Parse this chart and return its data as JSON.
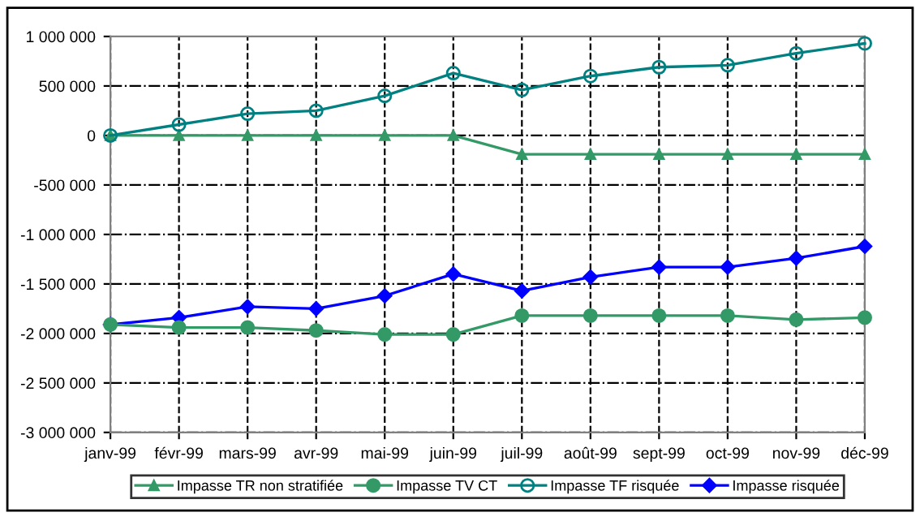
{
  "chart_data": {
    "type": "line",
    "categories": [
      "janv-99",
      "févr-99",
      "mars-99",
      "avr-99",
      "mai-99",
      "juin-99",
      "juil-99",
      "août-99",
      "sept-99",
      "oct-99",
      "nov-99",
      "déc-99"
    ],
    "series": [
      {
        "name": "Impasse TR non stratifiée",
        "color": "#339966",
        "marker": "triangle",
        "values": [
          0,
          0,
          0,
          0,
          0,
          0,
          -190000,
          -190000,
          -190000,
          -190000,
          -190000,
          -190000
        ]
      },
      {
        "name": "Impasse TV CT",
        "color": "#339966",
        "marker": "circle",
        "values": [
          -1910000,
          -1940000,
          -1940000,
          -1970000,
          -2010000,
          -2010000,
          -1820000,
          -1820000,
          -1820000,
          -1820000,
          -1860000,
          -1840000
        ]
      },
      {
        "name": "Impasse TF risquée",
        "color": "#008080",
        "marker": "open_circle",
        "values": [
          0,
          110000,
          220000,
          250000,
          400000,
          630000,
          460000,
          600000,
          690000,
          710000,
          830000,
          930000
        ]
      },
      {
        "name": "Impasse risquée",
        "color": "#0000ff",
        "marker": "diamond",
        "values": [
          -1910000,
          -1840000,
          -1730000,
          -1750000,
          -1620000,
          -1400000,
          -1570000,
          -1430000,
          -1330000,
          -1330000,
          -1240000,
          -1120000
        ]
      }
    ],
    "ylim": [
      -3000000,
      1000000
    ],
    "yticks": [
      {
        "value": -3000000,
        "label": "-3 000 000"
      },
      {
        "value": -2500000,
        "label": "-2 500 000"
      },
      {
        "value": -2000000,
        "label": "-2 000 000"
      },
      {
        "value": -1500000,
        "label": "-1 500 000"
      },
      {
        "value": -1000000,
        "label": "-1 000 000"
      },
      {
        "value": -500000,
        "label": "-500 000"
      },
      0,
      {
        "value": 500000,
        "label": "500 000"
      },
      {
        "value": 1000000,
        "label": "1 000 000"
      }
    ],
    "grid": true,
    "legend": "bottom",
    "line_style": "solid"
  }
}
